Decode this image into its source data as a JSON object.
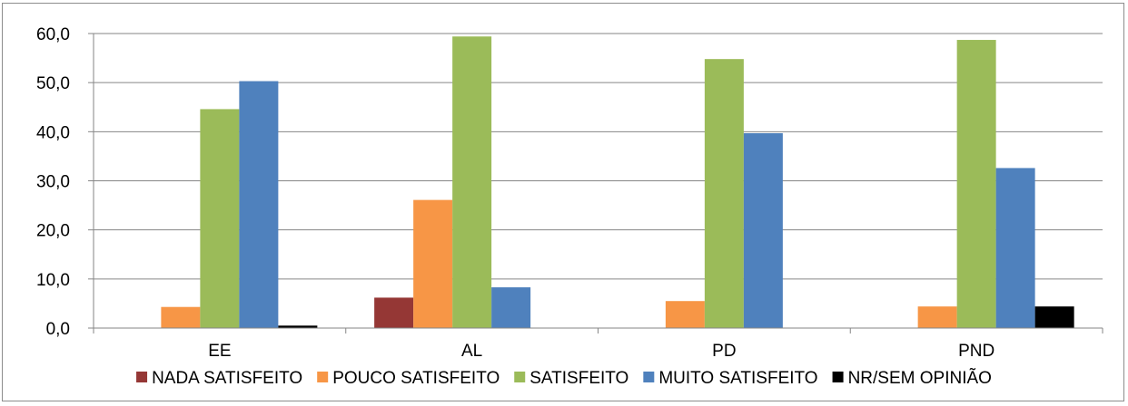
{
  "chart_data": {
    "type": "bar",
    "title": "",
    "xlabel": "",
    "ylabel": "",
    "categories": [
      "EE",
      "AL",
      "PD",
      "PND"
    ],
    "series": [
      {
        "name": "NADA SATISFEITO",
        "color": "#953735",
        "values": [
          0,
          6.2,
          0,
          0
        ]
      },
      {
        "name": "POUCO SATISFEITO",
        "color": "#F79646",
        "values": [
          4.3,
          26.1,
          5.5,
          4.4
        ]
      },
      {
        "name": "SATISFEITO",
        "color": "#9BBB59",
        "values": [
          44.6,
          59.4,
          54.8,
          58.7
        ]
      },
      {
        "name": "MUITO SATISFEITO",
        "color": "#4F81BD",
        "values": [
          50.3,
          8.3,
          39.7,
          32.6
        ]
      },
      {
        "name": "NR/SEM OPINIÃO",
        "color": "#000000",
        "values": [
          0.5,
          0,
          0,
          4.4
        ]
      }
    ],
    "ylim": [
      0,
      60
    ],
    "yticks": [
      "0,0",
      "10,0",
      "20,0",
      "30,0",
      "40,0",
      "50,0",
      "60,0"
    ],
    "grid": true,
    "legend_position": "bottom"
  }
}
